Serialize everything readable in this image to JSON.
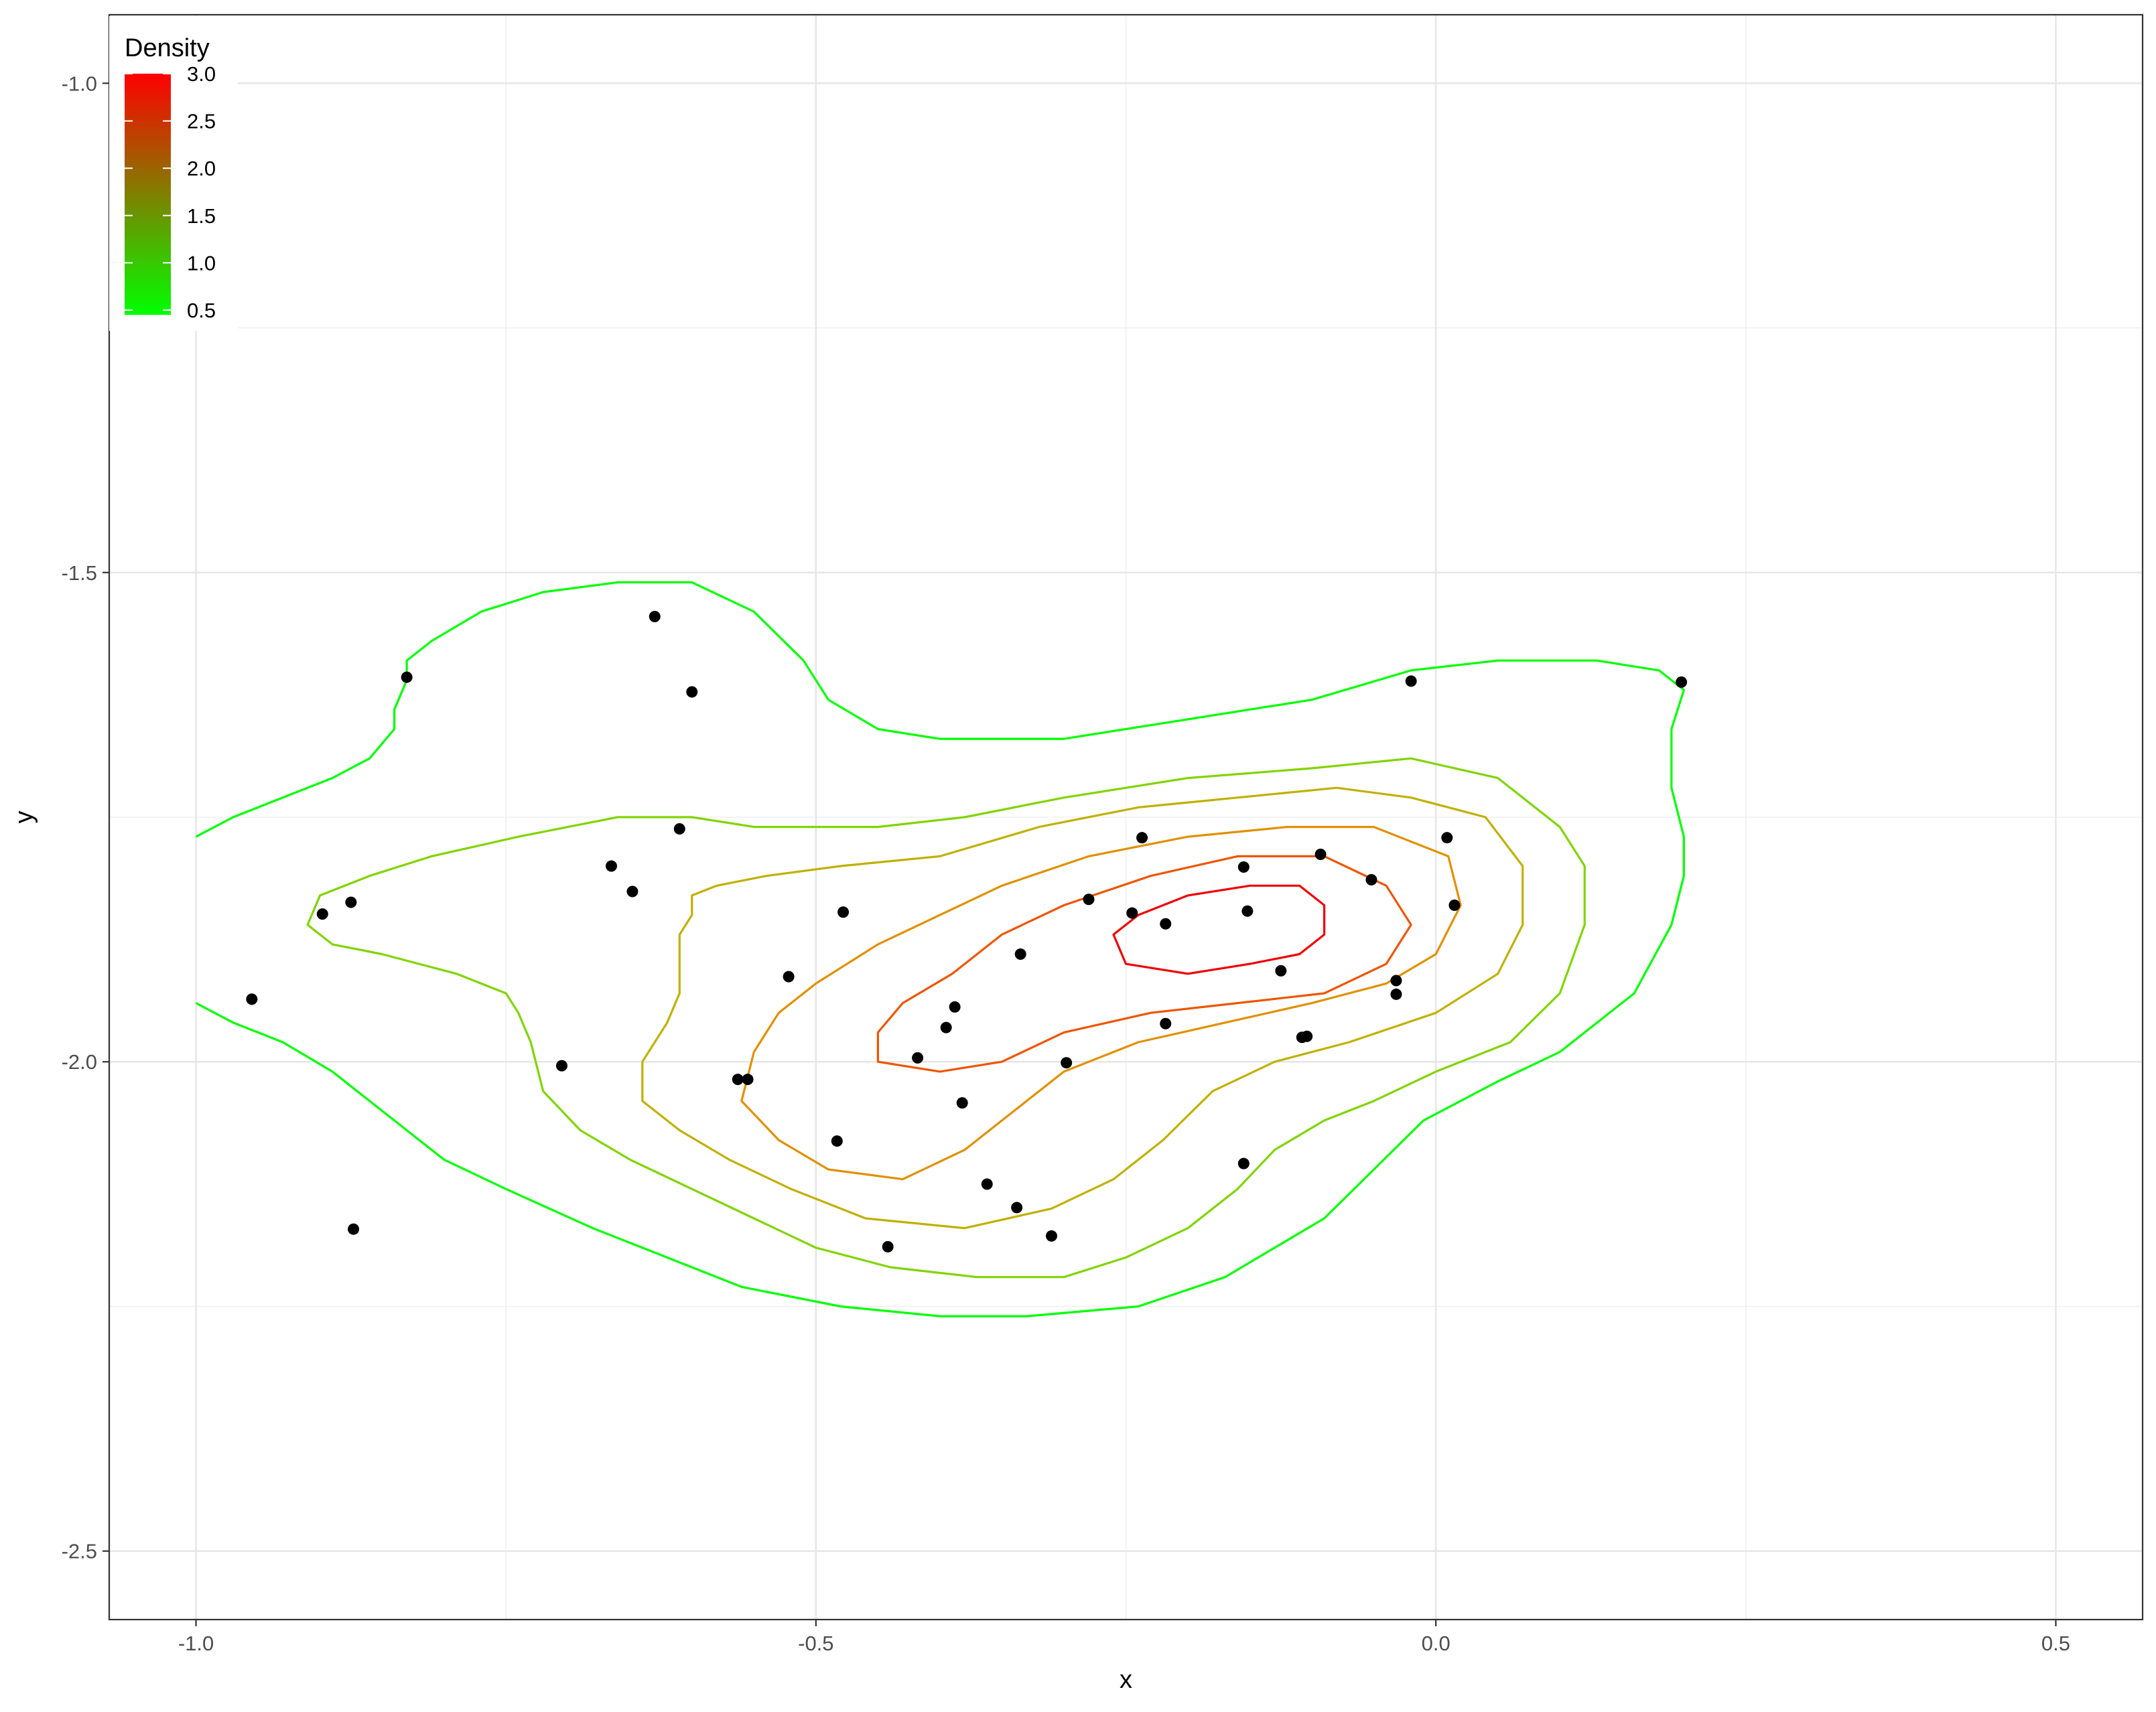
{
  "chart_data": {
    "type": "scatter",
    "title": "",
    "xlabel": "x",
    "ylabel": "y",
    "xlim": [
      -1.07,
      0.57
    ],
    "ylim": [
      -2.57,
      -0.93
    ],
    "x_ticks": [
      -1.0,
      -0.5,
      0.0,
      0.5
    ],
    "x_tick_labels": [
      "-1.0",
      "-0.5",
      "0.0",
      "0.5"
    ],
    "y_ticks": [
      -1.0,
      -1.5,
      -2.0,
      -2.5
    ],
    "y_tick_labels": [
      "-1.0",
      "-1.5",
      "-2.0",
      "-2.5"
    ],
    "grid": true,
    "legend": {
      "title": "Density",
      "position": "top-left",
      "range": [
        0.45,
        3.0
      ],
      "breaks": [
        0.5,
        1.0,
        1.5,
        2.0,
        2.5,
        3.0
      ],
      "labels": [
        "0.5",
        "1.0",
        "1.5",
        "2.0",
        "2.5",
        "3.0"
      ],
      "low_color": "#00ff00",
      "high_color": "#ff0000"
    },
    "points": [
      [
        -0.63,
        -1.545
      ],
      [
        -0.83,
        -1.607
      ],
      [
        -0.6,
        -1.622
      ],
      [
        -0.02,
        -1.611
      ],
      [
        0.198,
        -1.612
      ],
      [
        -0.61,
        -1.762
      ],
      [
        -0.237,
        -1.771
      ],
      [
        0.009,
        -1.771
      ],
      [
        -0.155,
        -1.801
      ],
      [
        -0.093,
        -1.788
      ],
      [
        -0.052,
        -1.814
      ],
      [
        -0.665,
        -1.8
      ],
      [
        -0.648,
        -1.826
      ],
      [
        -0.28,
        -1.834
      ],
      [
        0.015,
        -1.84
      ],
      [
        -0.875,
        -1.837
      ],
      [
        -0.898,
        -1.849
      ],
      [
        -0.478,
        -1.847
      ],
      [
        -0.245,
        -1.848
      ],
      [
        -0.218,
        -1.859
      ],
      [
        -0.152,
        -1.846
      ],
      [
        -0.335,
        -1.89
      ],
      [
        -0.125,
        -1.907
      ],
      [
        -0.522,
        -1.913
      ],
      [
        -0.032,
        -1.917
      ],
      [
        -0.032,
        -1.931
      ],
      [
        -0.955,
        -1.936
      ],
      [
        -0.388,
        -1.944
      ],
      [
        -0.395,
        -1.965
      ],
      [
        -0.218,
        -1.961
      ],
      [
        -0.108,
        -1.975
      ],
      [
        -0.104,
        -1.974
      ],
      [
        -0.418,
        -1.996
      ],
      [
        -0.298,
        -2.001
      ],
      [
        -0.705,
        -2.004
      ],
      [
        -0.563,
        -2.018
      ],
      [
        -0.555,
        -2.018
      ],
      [
        -0.382,
        -2.042
      ],
      [
        -0.483,
        -2.081
      ],
      [
        -0.155,
        -2.104
      ],
      [
        -0.362,
        -2.125
      ],
      [
        -0.338,
        -2.149
      ],
      [
        -0.31,
        -2.178
      ],
      [
        -0.873,
        -2.171
      ],
      [
        -0.442,
        -2.189
      ]
    ],
    "contours": [
      {
        "level": 0.5,
        "color": "#00ff00",
        "closed": false,
        "path": [
          [
            -1.0,
            -1.77
          ],
          [
            -0.97,
            -1.75
          ],
          [
            -0.93,
            -1.73
          ],
          [
            -0.89,
            -1.71
          ],
          [
            -0.86,
            -1.69
          ],
          [
            -0.84,
            -1.66
          ],
          [
            -0.84,
            -1.64
          ],
          [
            -0.83,
            -1.61
          ],
          [
            -0.83,
            -1.59
          ],
          [
            -0.81,
            -1.57
          ],
          [
            -0.77,
            -1.54
          ],
          [
            -0.72,
            -1.52
          ],
          [
            -0.66,
            -1.51
          ],
          [
            -0.6,
            -1.51
          ],
          [
            -0.55,
            -1.54
          ],
          [
            -0.51,
            -1.59
          ],
          [
            -0.49,
            -1.63
          ],
          [
            -0.45,
            -1.66
          ],
          [
            -0.4,
            -1.67
          ],
          [
            -0.3,
            -1.67
          ],
          [
            -0.2,
            -1.65
          ],
          [
            -0.1,
            -1.63
          ],
          [
            -0.02,
            -1.6
          ],
          [
            0.05,
            -1.59
          ],
          [
            0.13,
            -1.59
          ],
          [
            0.18,
            -1.6
          ],
          [
            0.2,
            -1.62
          ],
          [
            0.19,
            -1.66
          ],
          [
            0.19,
            -1.72
          ],
          [
            0.2,
            -1.77
          ],
          [
            0.2,
            -1.81
          ],
          [
            0.19,
            -1.86
          ],
          [
            0.16,
            -1.93
          ],
          [
            0.1,
            -1.99
          ],
          [
            0.05,
            -2.02
          ],
          [
            -0.01,
            -2.06
          ],
          [
            -0.05,
            -2.11
          ],
          [
            -0.09,
            -2.16
          ],
          [
            -0.13,
            -2.19
          ],
          [
            -0.17,
            -2.22
          ],
          [
            -0.24,
            -2.25
          ],
          [
            -0.33,
            -2.26
          ],
          [
            -0.4,
            -2.26
          ],
          [
            -0.48,
            -2.25
          ],
          [
            -0.56,
            -2.23
          ],
          [
            -0.62,
            -2.2
          ],
          [
            -0.68,
            -2.17
          ],
          [
            -0.75,
            -2.13
          ],
          [
            -0.8,
            -2.1
          ],
          [
            -0.85,
            -2.05
          ],
          [
            -0.89,
            -2.01
          ],
          [
            -0.93,
            -1.98
          ],
          [
            -0.97,
            -1.96
          ],
          [
            -1.0,
            -1.94
          ]
        ]
      },
      {
        "level": 1.0,
        "color": "#80d400",
        "closed": true,
        "path": [
          [
            -0.9,
            -1.83
          ],
          [
            -0.86,
            -1.81
          ],
          [
            -0.81,
            -1.79
          ],
          [
            -0.74,
            -1.77
          ],
          [
            -0.66,
            -1.75
          ],
          [
            -0.6,
            -1.75
          ],
          [
            -0.55,
            -1.76
          ],
          [
            -0.5,
            -1.76
          ],
          [
            -0.45,
            -1.76
          ],
          [
            -0.38,
            -1.75
          ],
          [
            -0.3,
            -1.73
          ],
          [
            -0.2,
            -1.71
          ],
          [
            -0.1,
            -1.7
          ],
          [
            -0.02,
            -1.69
          ],
          [
            0.05,
            -1.71
          ],
          [
            0.1,
            -1.76
          ],
          [
            0.12,
            -1.8
          ],
          [
            0.12,
            -1.86
          ],
          [
            0.1,
            -1.93
          ],
          [
            0.06,
            -1.98
          ],
          [
            0.0,
            -2.01
          ],
          [
            -0.05,
            -2.04
          ],
          [
            -0.09,
            -2.06
          ],
          [
            -0.13,
            -2.09
          ],
          [
            -0.16,
            -2.13
          ],
          [
            -0.2,
            -2.17
          ],
          [
            -0.25,
            -2.2
          ],
          [
            -0.3,
            -2.22
          ],
          [
            -0.37,
            -2.22
          ],
          [
            -0.44,
            -2.21
          ],
          [
            -0.5,
            -2.19
          ],
          [
            -0.55,
            -2.16
          ],
          [
            -0.6,
            -2.13
          ],
          [
            -0.65,
            -2.1
          ],
          [
            -0.69,
            -2.07
          ],
          [
            -0.72,
            -2.03
          ],
          [
            -0.73,
            -1.98
          ],
          [
            -0.74,
            -1.95
          ],
          [
            -0.75,
            -1.93
          ],
          [
            -0.79,
            -1.91
          ],
          [
            -0.85,
            -1.89
          ],
          [
            -0.89,
            -1.88
          ],
          [
            -0.91,
            -1.86
          ],
          [
            -0.9,
            -1.83
          ]
        ]
      },
      {
        "level": 1.5,
        "color": "#c0b000",
        "closed": true,
        "path": [
          [
            -0.61,
            -1.87
          ],
          [
            -0.6,
            -1.85
          ],
          [
            -0.6,
            -1.83
          ],
          [
            -0.58,
            -1.82
          ],
          [
            -0.54,
            -1.81
          ],
          [
            -0.48,
            -1.8
          ],
          [
            -0.4,
            -1.79
          ],
          [
            -0.32,
            -1.76
          ],
          [
            -0.24,
            -1.74
          ],
          [
            -0.16,
            -1.73
          ],
          [
            -0.08,
            -1.72
          ],
          [
            -0.02,
            -1.73
          ],
          [
            0.04,
            -1.75
          ],
          [
            0.07,
            -1.8
          ],
          [
            0.07,
            -1.86
          ],
          [
            0.05,
            -1.91
          ],
          [
            0.0,
            -1.95
          ],
          [
            -0.07,
            -1.98
          ],
          [
            -0.13,
            -2.0
          ],
          [
            -0.18,
            -2.03
          ],
          [
            -0.22,
            -2.08
          ],
          [
            -0.26,
            -2.12
          ],
          [
            -0.31,
            -2.15
          ],
          [
            -0.38,
            -2.17
          ],
          [
            -0.46,
            -2.16
          ],
          [
            -0.52,
            -2.13
          ],
          [
            -0.57,
            -2.1
          ],
          [
            -0.61,
            -2.07
          ],
          [
            -0.64,
            -2.04
          ],
          [
            -0.64,
            -2.0
          ],
          [
            -0.62,
            -1.96
          ],
          [
            -0.61,
            -1.93
          ],
          [
            -0.61,
            -1.87
          ]
        ]
      },
      {
        "level": 2.0,
        "color": "#e09000",
        "closed": true,
        "path": [
          [
            -0.55,
            -1.99
          ],
          [
            -0.53,
            -1.95
          ],
          [
            -0.5,
            -1.92
          ],
          [
            -0.45,
            -1.88
          ],
          [
            -0.4,
            -1.85
          ],
          [
            -0.35,
            -1.82
          ],
          [
            -0.28,
            -1.79
          ],
          [
            -0.2,
            -1.77
          ],
          [
            -0.12,
            -1.76
          ],
          [
            -0.05,
            -1.76
          ],
          [
            0.01,
            -1.79
          ],
          [
            0.02,
            -1.84
          ],
          [
            0.0,
            -1.89
          ],
          [
            -0.04,
            -1.92
          ],
          [
            -0.1,
            -1.94
          ],
          [
            -0.17,
            -1.96
          ],
          [
            -0.24,
            -1.98
          ],
          [
            -0.3,
            -2.01
          ],
          [
            -0.34,
            -2.05
          ],
          [
            -0.38,
            -2.09
          ],
          [
            -0.43,
            -2.12
          ],
          [
            -0.49,
            -2.11
          ],
          [
            -0.53,
            -2.08
          ],
          [
            -0.56,
            -2.04
          ],
          [
            -0.55,
            -1.99
          ]
        ]
      },
      {
        "level": 2.5,
        "color": "#ee5500",
        "closed": true,
        "path": [
          [
            -0.45,
            -1.97
          ],
          [
            -0.43,
            -1.94
          ],
          [
            -0.39,
            -1.91
          ],
          [
            -0.35,
            -1.87
          ],
          [
            -0.3,
            -1.84
          ],
          [
            -0.23,
            -1.81
          ],
          [
            -0.16,
            -1.79
          ],
          [
            -0.09,
            -1.79
          ],
          [
            -0.04,
            -1.82
          ],
          [
            -0.02,
            -1.86
          ],
          [
            -0.04,
            -1.9
          ],
          [
            -0.09,
            -1.93
          ],
          [
            -0.16,
            -1.94
          ],
          [
            -0.23,
            -1.95
          ],
          [
            -0.3,
            -1.97
          ],
          [
            -0.35,
            -2.0
          ],
          [
            -0.4,
            -2.01
          ],
          [
            -0.45,
            -2.0
          ],
          [
            -0.45,
            -1.97
          ]
        ]
      },
      {
        "level": 3.0,
        "color": "#ee0000",
        "closed": true,
        "path": [
          [
            -0.26,
            -1.87
          ],
          [
            -0.24,
            -1.85
          ],
          [
            -0.2,
            -1.83
          ],
          [
            -0.15,
            -1.82
          ],
          [
            -0.11,
            -1.82
          ],
          [
            -0.09,
            -1.84
          ],
          [
            -0.09,
            -1.87
          ],
          [
            -0.11,
            -1.89
          ],
          [
            -0.15,
            -1.9
          ],
          [
            -0.2,
            -1.91
          ],
          [
            -0.25,
            -1.9
          ],
          [
            -0.26,
            -1.87
          ]
        ]
      }
    ]
  }
}
